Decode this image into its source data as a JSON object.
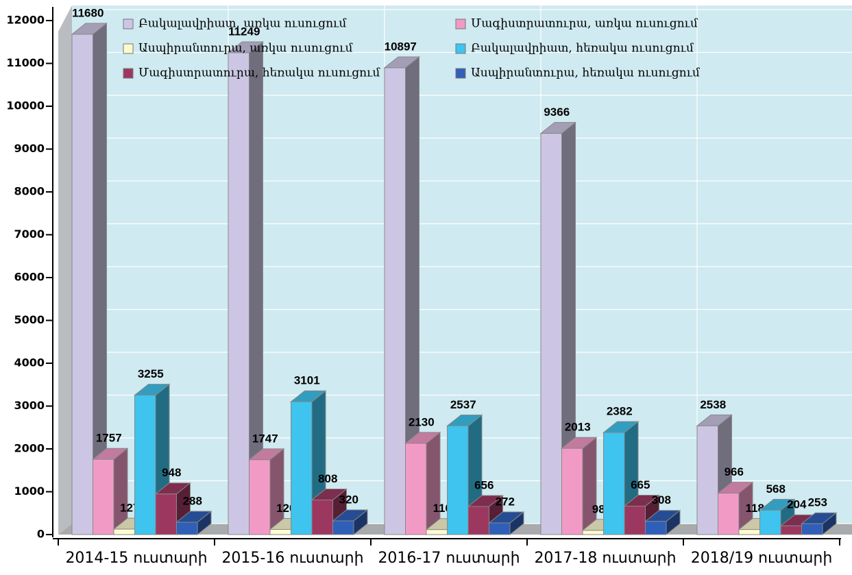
{
  "chart_data": {
    "type": "bar3d",
    "categories": [
      "2014-15 ուստարի",
      "2015-16 ուստարի",
      "2016-17 ուստարի",
      "2017-18 ուստարի",
      "2018/19 ուստարի"
    ],
    "series": [
      {
        "name": "Բակալավրիատ, առկա ուսուցում",
        "color": "#ccc6e4",
        "values": [
          11680,
          11249,
          10897,
          9366,
          2538
        ]
      },
      {
        "name": "Մագիստրատուրա, առկա ուսուցում",
        "color": "#f29ac6",
        "values": [
          1757,
          1747,
          2130,
          2013,
          966
        ]
      },
      {
        "name": "Ասպիրանտուրա, առկա ուսուցում",
        "color": "#fdfad0",
        "values": [
          127,
          120,
          116,
          98,
          118
        ]
      },
      {
        "name": "Բակալավրիատ, հեռակա ուսուցում",
        "color": "#3ec4ee",
        "values": [
          3255,
          3101,
          2537,
          2382,
          568
        ]
      },
      {
        "name": "Մագիստրատուրա, հեռակա ուսուցում",
        "color": "#9c3860",
        "values": [
          948,
          808,
          656,
          665,
          204
        ]
      },
      {
        "name": "Ասպիրանտուրա, հեռակա ուսուցում",
        "color": "#2f5fb8",
        "values": [
          288,
          320,
          272,
          308,
          253
        ]
      }
    ],
    "ylim": [
      0,
      12000
    ],
    "yticks": [
      0,
      1000,
      2000,
      3000,
      4000,
      5000,
      6000,
      7000,
      8000,
      9000,
      10000,
      11000,
      12000
    ],
    "grid": true
  }
}
